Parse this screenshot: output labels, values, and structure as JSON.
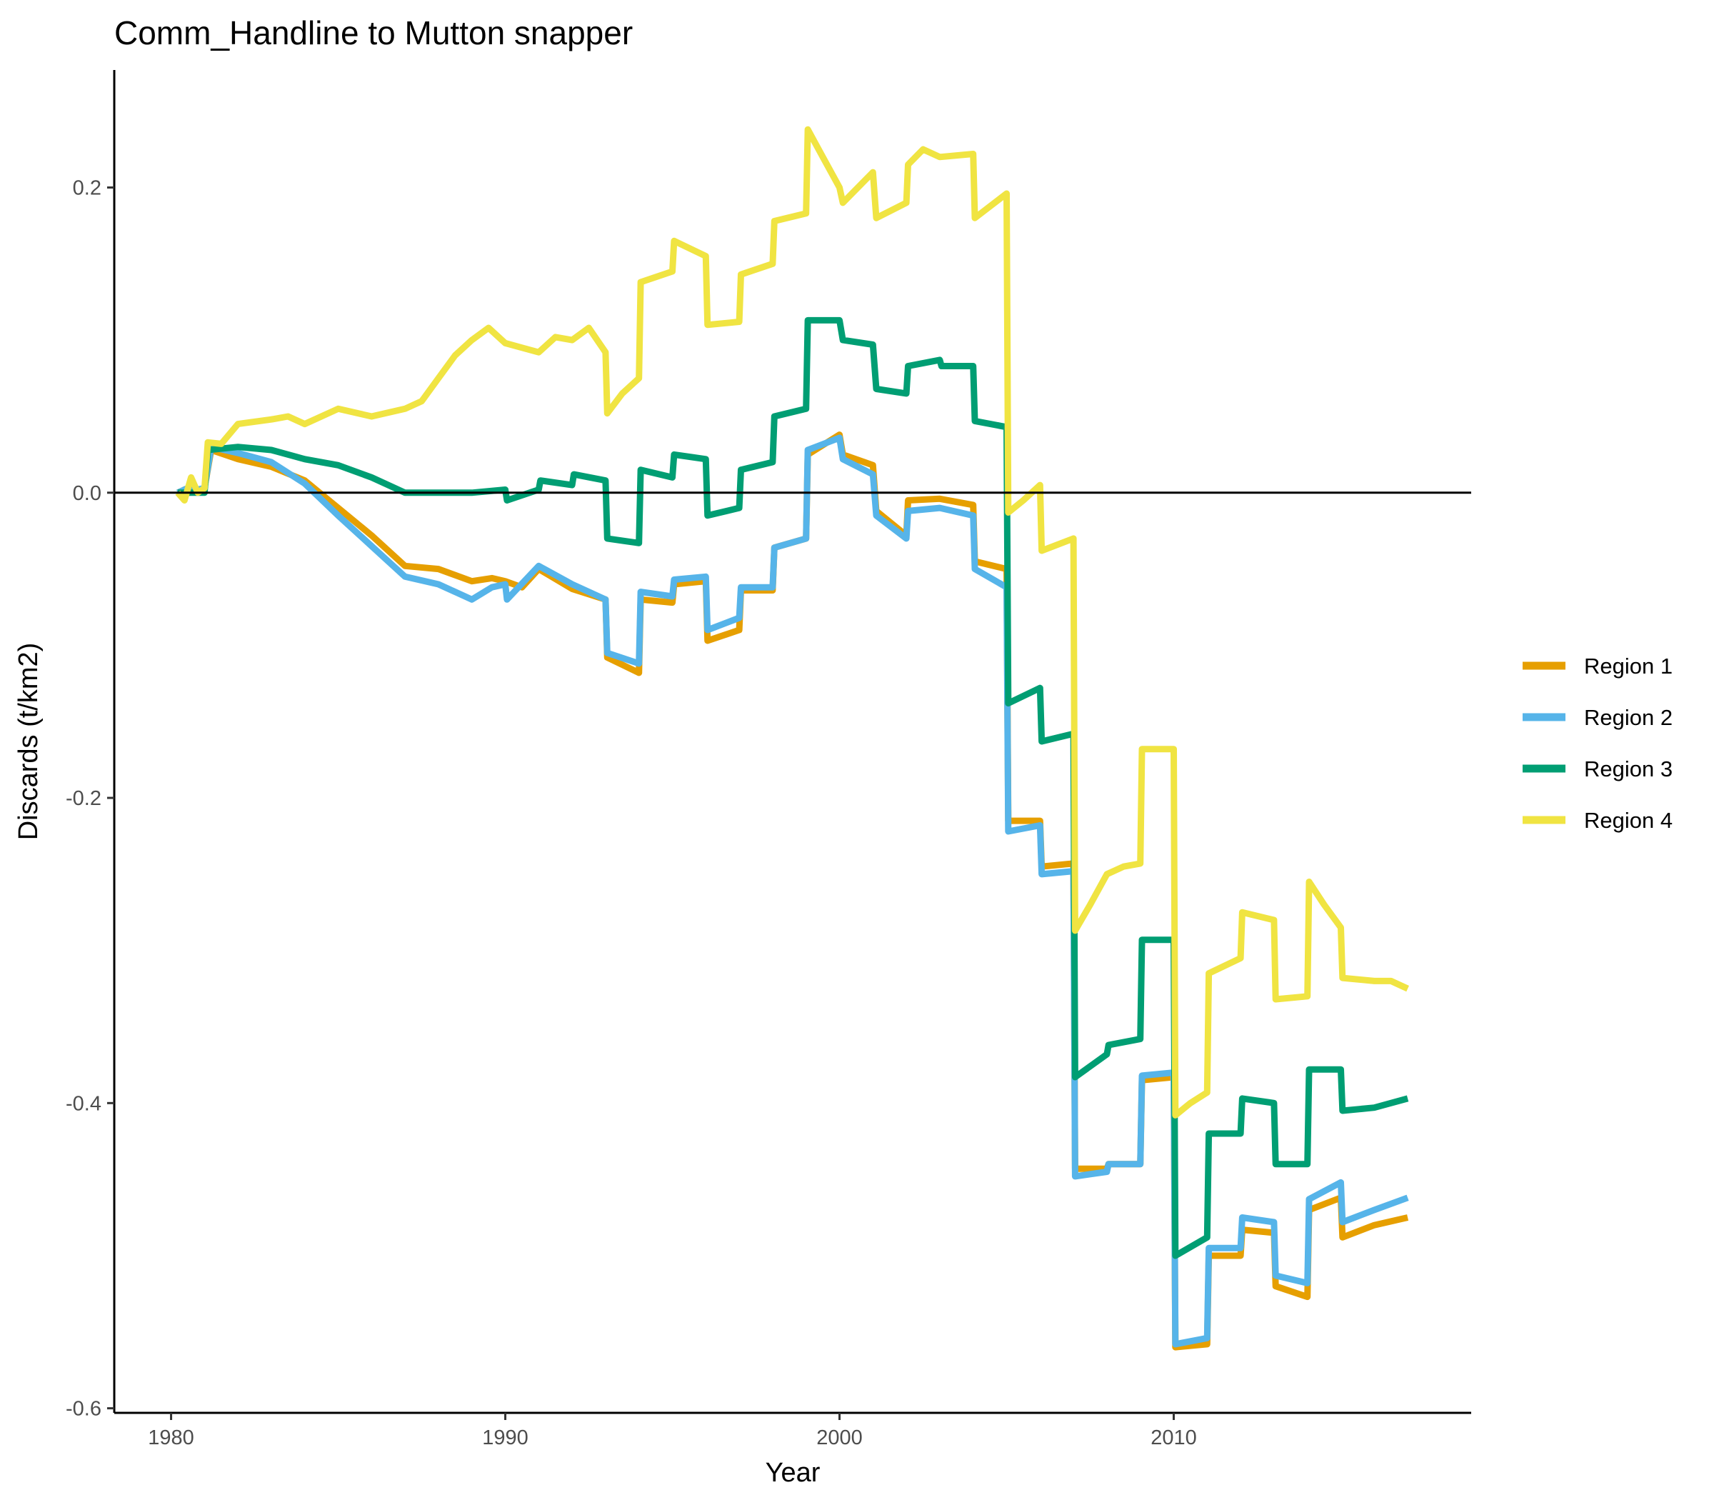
{
  "chart_data": {
    "type": "line",
    "title": "Comm_Handline to Mutton snapper",
    "xlabel": "Year",
    "ylabel": "Discards (t/km2)",
    "xlim": [
      1978.3,
      2018.9
    ],
    "ylim": [
      -0.603,
      0.277
    ],
    "xticks": [
      1980,
      1990,
      2000,
      2010
    ],
    "xtick_labels": [
      "1980",
      "1990",
      "2000",
      "2010"
    ],
    "yticks": [
      -0.6,
      -0.4,
      -0.2,
      0.0,
      0.2
    ],
    "ytick_labels": [
      "-0.6",
      "-0.4",
      "-0.2",
      "0.0",
      "0.2"
    ],
    "reference_line": 0,
    "grid": false,
    "legend_position": "right",
    "series": [
      {
        "name": "Region 1",
        "label": "Region 1",
        "color": "#E69F00",
        "points": [
          [
            1980.2,
            0
          ],
          [
            1980.5,
            0.003
          ],
          [
            1980.8,
            0.002
          ],
          [
            1981.0,
            0.003
          ],
          [
            1981.2,
            0.028
          ],
          [
            1982.0,
            0.022
          ],
          [
            1983.0,
            0.017
          ],
          [
            1984.0,
            0.008
          ],
          [
            1985.0,
            -0.01
          ],
          [
            1986.0,
            -0.028
          ],
          [
            1987.0,
            -0.048
          ],
          [
            1988.0,
            -0.05
          ],
          [
            1989.0,
            -0.058
          ],
          [
            1989.6,
            -0.056
          ],
          [
            1990.0,
            -0.058
          ],
          [
            1990.5,
            -0.062
          ],
          [
            1991.0,
            -0.05
          ],
          [
            1992.0,
            -0.063
          ],
          [
            1993.0,
            -0.07
          ],
          [
            1993.05,
            -0.108
          ],
          [
            1994.0,
            -0.118
          ],
          [
            1994.05,
            -0.07
          ],
          [
            1995.0,
            -0.072
          ],
          [
            1995.05,
            -0.06
          ],
          [
            1996.0,
            -0.058
          ],
          [
            1996.05,
            -0.097
          ],
          [
            1997.0,
            -0.09
          ],
          [
            1997.05,
            -0.064
          ],
          [
            1998.0,
            -0.064
          ],
          [
            1998.05,
            -0.036
          ],
          [
            1999.0,
            -0.03
          ],
          [
            1999.05,
            0.025
          ],
          [
            2000.0,
            0.038
          ],
          [
            2000.1,
            0.025
          ],
          [
            2001.0,
            0.018
          ],
          [
            2001.1,
            -0.012
          ],
          [
            2002.0,
            -0.028
          ],
          [
            2002.05,
            -0.005
          ],
          [
            2003.0,
            -0.004
          ],
          [
            2004.0,
            -0.008
          ],
          [
            2004.05,
            -0.045
          ],
          [
            2005.0,
            -0.05
          ],
          [
            2005.05,
            -0.215
          ],
          [
            2006.0,
            -0.215
          ],
          [
            2006.05,
            -0.245
          ],
          [
            2007.0,
            -0.243
          ],
          [
            2007.05,
            -0.443
          ],
          [
            2008.0,
            -0.443
          ],
          [
            2008.05,
            -0.44
          ],
          [
            2009.0,
            -0.44
          ],
          [
            2009.05,
            -0.385
          ],
          [
            2010.0,
            -0.383
          ],
          [
            2010.05,
            -0.56
          ],
          [
            2011.0,
            -0.558
          ],
          [
            2011.05,
            -0.5
          ],
          [
            2012.0,
            -0.5
          ],
          [
            2012.05,
            -0.483
          ],
          [
            2013.0,
            -0.485
          ],
          [
            2013.05,
            -0.52
          ],
          [
            2014.0,
            -0.527
          ],
          [
            2014.05,
            -0.47
          ],
          [
            2015.0,
            -0.462
          ],
          [
            2015.05,
            -0.488
          ],
          [
            2016.0,
            -0.48
          ],
          [
            2017.0,
            -0.475
          ]
        ]
      },
      {
        "name": "Region 2",
        "label": "Region 2",
        "color": "#56B4E9",
        "points": [
          [
            1980.2,
            0
          ],
          [
            1980.5,
            0.003
          ],
          [
            1980.8,
            0.002
          ],
          [
            1981.0,
            0.003
          ],
          [
            1981.2,
            0.03
          ],
          [
            1982.0,
            0.026
          ],
          [
            1983.0,
            0.02
          ],
          [
            1984.0,
            0.006
          ],
          [
            1985.0,
            -0.015
          ],
          [
            1986.0,
            -0.035
          ],
          [
            1987.0,
            -0.055
          ],
          [
            1988.0,
            -0.06
          ],
          [
            1989.0,
            -0.07
          ],
          [
            1989.6,
            -0.062
          ],
          [
            1990.0,
            -0.06
          ],
          [
            1990.05,
            -0.07
          ],
          [
            1991.0,
            -0.048
          ],
          [
            1992.0,
            -0.06
          ],
          [
            1993.0,
            -0.07
          ],
          [
            1993.05,
            -0.105
          ],
          [
            1994.0,
            -0.112
          ],
          [
            1994.05,
            -0.065
          ],
          [
            1995.0,
            -0.068
          ],
          [
            1995.05,
            -0.057
          ],
          [
            1996.0,
            -0.055
          ],
          [
            1996.05,
            -0.09
          ],
          [
            1997.0,
            -0.082
          ],
          [
            1997.05,
            -0.062
          ],
          [
            1998.0,
            -0.062
          ],
          [
            1998.05,
            -0.036
          ],
          [
            1999.0,
            -0.03
          ],
          [
            1999.05,
            0.028
          ],
          [
            2000.0,
            0.036
          ],
          [
            2000.1,
            0.022
          ],
          [
            2001.0,
            0.012
          ],
          [
            2001.1,
            -0.015
          ],
          [
            2002.0,
            -0.03
          ],
          [
            2002.05,
            -0.012
          ],
          [
            2003.0,
            -0.01
          ],
          [
            2004.0,
            -0.015
          ],
          [
            2004.05,
            -0.05
          ],
          [
            2005.0,
            -0.062
          ],
          [
            2005.05,
            -0.222
          ],
          [
            2006.0,
            -0.218
          ],
          [
            2006.05,
            -0.25
          ],
          [
            2007.0,
            -0.248
          ],
          [
            2007.05,
            -0.448
          ],
          [
            2008.0,
            -0.445
          ],
          [
            2008.05,
            -0.44
          ],
          [
            2009.0,
            -0.44
          ],
          [
            2009.05,
            -0.382
          ],
          [
            2010.0,
            -0.38
          ],
          [
            2010.05,
            -0.558
          ],
          [
            2011.0,
            -0.554
          ],
          [
            2011.05,
            -0.495
          ],
          [
            2012.0,
            -0.495
          ],
          [
            2012.05,
            -0.475
          ],
          [
            2013.0,
            -0.478
          ],
          [
            2013.05,
            -0.513
          ],
          [
            2014.0,
            -0.518
          ],
          [
            2014.05,
            -0.463
          ],
          [
            2015.0,
            -0.452
          ],
          [
            2015.05,
            -0.478
          ],
          [
            2016.0,
            -0.47
          ],
          [
            2017.0,
            -0.462
          ]
        ]
      },
      {
        "name": "Region 3",
        "label": "Region 3",
        "color": "#009E73",
        "points": [
          [
            1980.2,
            0
          ],
          [
            1981.0,
            0
          ],
          [
            1981.1,
            0.028
          ],
          [
            1982.0,
            0.03
          ],
          [
            1983.0,
            0.028
          ],
          [
            1984.0,
            0.022
          ],
          [
            1985.0,
            0.018
          ],
          [
            1986.0,
            0.01
          ],
          [
            1987.0,
            0
          ],
          [
            1988.0,
            0
          ],
          [
            1989.0,
            0
          ],
          [
            1990.0,
            0.002
          ],
          [
            1990.05,
            -0.005
          ],
          [
            1991.0,
            0.002
          ],
          [
            1991.05,
            0.008
          ],
          [
            1992.0,
            0.005
          ],
          [
            1992.05,
            0.012
          ],
          [
            1993.0,
            0.008
          ],
          [
            1993.05,
            -0.03
          ],
          [
            1994.0,
            -0.033
          ],
          [
            1994.05,
            0.015
          ],
          [
            1995.0,
            0.01
          ],
          [
            1995.05,
            0.025
          ],
          [
            1996.0,
            0.022
          ],
          [
            1996.05,
            -0.015
          ],
          [
            1997.0,
            -0.01
          ],
          [
            1997.05,
            0.015
          ],
          [
            1998.0,
            0.02
          ],
          [
            1998.05,
            0.05
          ],
          [
            1999.0,
            0.055
          ],
          [
            1999.05,
            0.113
          ],
          [
            2000.0,
            0.113
          ],
          [
            2000.1,
            0.1
          ],
          [
            2001.0,
            0.097
          ],
          [
            2001.1,
            0.068
          ],
          [
            2002.0,
            0.065
          ],
          [
            2002.05,
            0.083
          ],
          [
            2003.0,
            0.087
          ],
          [
            2003.05,
            0.083
          ],
          [
            2004.0,
            0.083
          ],
          [
            2004.05,
            0.047
          ],
          [
            2005.0,
            0.043
          ],
          [
            2005.05,
            -0.138
          ],
          [
            2006.0,
            -0.128
          ],
          [
            2006.05,
            -0.163
          ],
          [
            2007.0,
            -0.158
          ],
          [
            2007.05,
            -0.383
          ],
          [
            2008.0,
            -0.368
          ],
          [
            2008.05,
            -0.362
          ],
          [
            2009.0,
            -0.358
          ],
          [
            2009.05,
            -0.293
          ],
          [
            2010.0,
            -0.293
          ],
          [
            2010.05,
            -0.5
          ],
          [
            2011.0,
            -0.488
          ],
          [
            2011.05,
            -0.42
          ],
          [
            2012.0,
            -0.42
          ],
          [
            2012.05,
            -0.397
          ],
          [
            2013.0,
            -0.4
          ],
          [
            2013.05,
            -0.44
          ],
          [
            2014.0,
            -0.44
          ],
          [
            2014.05,
            -0.378
          ],
          [
            2015.0,
            -0.378
          ],
          [
            2015.05,
            -0.405
          ],
          [
            2016.0,
            -0.403
          ],
          [
            2017.0,
            -0.397
          ]
        ]
      },
      {
        "name": "Region 4",
        "label": "Region 4",
        "color": "#F0E442",
        "points": [
          [
            1980.2,
            0
          ],
          [
            1980.4,
            -0.005
          ],
          [
            1980.6,
            0.01
          ],
          [
            1980.8,
            0
          ],
          [
            1981.0,
            0.003
          ],
          [
            1981.1,
            0.033
          ],
          [
            1981.5,
            0.032
          ],
          [
            1982.0,
            0.045
          ],
          [
            1983.0,
            0.048
          ],
          [
            1983.5,
            0.05
          ],
          [
            1984.0,
            0.045
          ],
          [
            1985.0,
            0.055
          ],
          [
            1986.0,
            0.05
          ],
          [
            1987.0,
            0.055
          ],
          [
            1987.5,
            0.06
          ],
          [
            1988.0,
            0.075
          ],
          [
            1988.5,
            0.09
          ],
          [
            1989.0,
            0.1
          ],
          [
            1989.5,
            0.108
          ],
          [
            1990.0,
            0.098
          ],
          [
            1990.5,
            0.095
          ],
          [
            1991.0,
            0.092
          ],
          [
            1991.5,
            0.102
          ],
          [
            1992.0,
            0.1
          ],
          [
            1992.5,
            0.108
          ],
          [
            1993.0,
            0.092
          ],
          [
            1993.05,
            0.052
          ],
          [
            1993.5,
            0.065
          ],
          [
            1994.0,
            0.075
          ],
          [
            1994.05,
            0.138
          ],
          [
            1995.0,
            0.145
          ],
          [
            1995.05,
            0.165
          ],
          [
            1996.0,
            0.155
          ],
          [
            1996.05,
            0.11
          ],
          [
            1997.0,
            0.112
          ],
          [
            1997.05,
            0.143
          ],
          [
            1998.0,
            0.15
          ],
          [
            1998.05,
            0.178
          ],
          [
            1999.0,
            0.183
          ],
          [
            1999.05,
            0.238
          ],
          [
            1999.5,
            0.22
          ],
          [
            2000.0,
            0.2
          ],
          [
            2000.1,
            0.19
          ],
          [
            2001.0,
            0.21
          ],
          [
            2001.1,
            0.18
          ],
          [
            2002.0,
            0.19
          ],
          [
            2002.05,
            0.215
          ],
          [
            2002.5,
            0.225
          ],
          [
            2003.0,
            0.22
          ],
          [
            2004.0,
            0.222
          ],
          [
            2004.05,
            0.18
          ],
          [
            2005.0,
            0.196
          ],
          [
            2005.05,
            -0.013
          ],
          [
            2005.5,
            -0.005
          ],
          [
            2006.0,
            0.005
          ],
          [
            2006.05,
            -0.038
          ],
          [
            2007.0,
            -0.03
          ],
          [
            2007.05,
            -0.287
          ],
          [
            2007.5,
            -0.27
          ],
          [
            2008.0,
            -0.25
          ],
          [
            2008.5,
            -0.245
          ],
          [
            2009.0,
            -0.243
          ],
          [
            2009.05,
            -0.168
          ],
          [
            2010.0,
            -0.168
          ],
          [
            2010.05,
            -0.408
          ],
          [
            2010.5,
            -0.4
          ],
          [
            2011.0,
            -0.393
          ],
          [
            2011.05,
            -0.315
          ],
          [
            2012.0,
            -0.305
          ],
          [
            2012.05,
            -0.275
          ],
          [
            2013.0,
            -0.28
          ],
          [
            2013.05,
            -0.332
          ],
          [
            2014.0,
            -0.33
          ],
          [
            2014.05,
            -0.255
          ],
          [
            2014.5,
            -0.27
          ],
          [
            2015.0,
            -0.285
          ],
          [
            2015.05,
            -0.318
          ],
          [
            2016.0,
            -0.32
          ],
          [
            2016.5,
            -0.32
          ],
          [
            2017.0,
            -0.325
          ]
        ]
      }
    ]
  }
}
